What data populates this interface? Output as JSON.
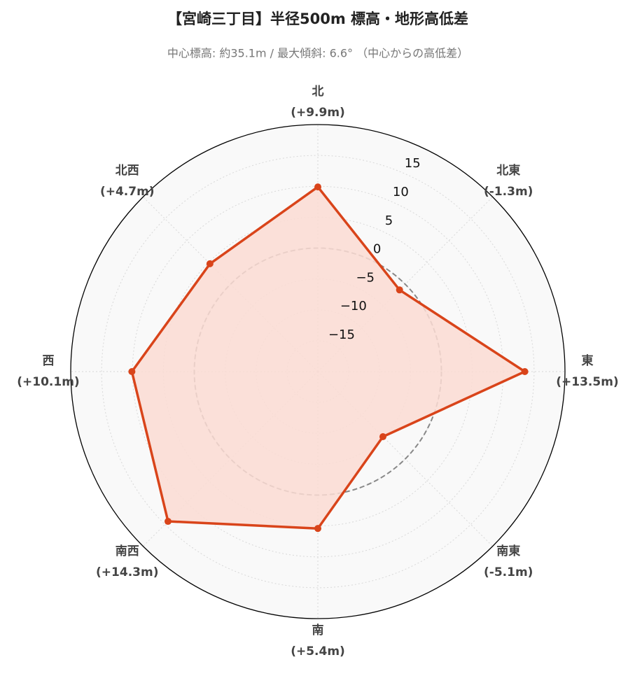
{
  "chart_data": {
    "type": "radar",
    "title": "【宮崎三丁目】半径500m 標高・地形高低差",
    "subtitle": "中心標高: 約35.1m / 最大傾斜: 6.6° （中心からの高低差）",
    "categories": [
      "北",
      "北東",
      "東",
      "南東",
      "南",
      "南西",
      "西",
      "北西"
    ],
    "series": [
      {
        "color": "#d9441a",
        "fill": "#fcdcd3",
        "values": [
          9.9,
          -1.3,
          13.5,
          -5.1,
          5.4,
          14.3,
          10.1,
          4.7
        ],
        "value_labels": [
          "(+9.9m)",
          "(-1.3m)",
          "(+13.5m)",
          "(-5.1m)",
          "(+5.4m)",
          "(+14.3m)",
          "(+10.1m)",
          "(+4.7m)"
        ]
      }
    ],
    "ylim": [
      -20,
      20
    ],
    "yticks": [
      {
        "value": -15,
        "label": "−15"
      },
      {
        "value": -10,
        "label": "−10"
      },
      {
        "value": -5,
        "label": "−5"
      },
      0,
      5,
      10,
      15
    ],
    "reference_line": 0,
    "grid": true
  }
}
